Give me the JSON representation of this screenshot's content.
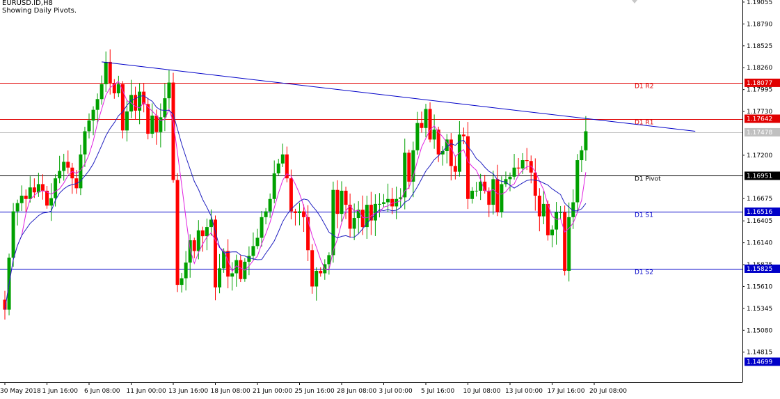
{
  "header": {
    "symbol": "EURUSD.ID,H8",
    "subtitle": "Showing Daily Pivots."
  },
  "chart_data": {
    "type": "candlestick",
    "symbol": "EURUSD.ID",
    "timeframe": "H8",
    "colors": {
      "bull": "#00a000",
      "bear": "#ff0000",
      "ma_fast": "#e020e0",
      "ma_slow": "#2020c0",
      "trendline": "#0000c8",
      "resistance": "#e00000",
      "support": "#0000c8",
      "pivot": "#000000",
      "current_price": "#c0c0c0"
    },
    "y_axis": {
      "min": 1.1445,
      "max": 1.1908,
      "ticks": [
        "1.19055",
        "1.18790",
        "1.18525",
        "1.18260",
        "1.17995",
        "1.17730",
        "1.17200",
        "1.16675",
        "1.16405",
        "1.16140",
        "1.15875",
        "1.15610",
        "1.15345",
        "1.15080",
        "1.14815"
      ],
      "tick_values": [
        1.19055,
        1.1879,
        1.18525,
        1.1826,
        1.17995,
        1.1773,
        1.172,
        1.16675,
        1.16405,
        1.1614,
        1.15875,
        1.1561,
        1.15345,
        1.1508,
        1.14815
      ]
    },
    "x_axis": {
      "labels": [
        "30 May 2018",
        "1 Jun 16:00",
        "6 Jun 08:00",
        "11 Jun 00:00",
        "13 Jun 16:00",
        "18 Jun 08:00",
        "21 Jun 00:00",
        "25 Jun 16:00",
        "28 Jun 08:00",
        "3 Jul 00:00",
        "5 Jul 16:00",
        "10 Jul 08:00",
        "13 Jul 00:00",
        "17 Jul 16:00",
        "20 Jul 08:00"
      ],
      "label_bar_index": [
        0,
        10,
        20,
        30,
        40,
        50,
        60,
        70,
        80,
        90,
        100,
        110,
        120,
        130,
        140
      ]
    },
    "levels": [
      {
        "name": "D1 R2",
        "value": 1.18077,
        "price_label": "1.18077",
        "kind": "resistance"
      },
      {
        "name": "D1 R1",
        "value": 1.17642,
        "price_label": "1.17642",
        "kind": "resistance"
      },
      {
        "name": "D1 Pivot",
        "value": 1.16951,
        "price_label": "1.16951",
        "kind": "pivot"
      },
      {
        "name": "D1 S1",
        "value": 1.16516,
        "price_label": "1.16516",
        "kind": "support"
      },
      {
        "name": "D1 S2",
        "value": 1.15825,
        "price_label": "1.15825",
        "kind": "support"
      }
    ],
    "current_price": {
      "value": 1.17478,
      "label": "1.17478"
    },
    "bottom_price": {
      "value": 1.14699,
      "label": "1.14699"
    },
    "trendline": {
      "start": {
        "bar": 23,
        "price": 1.1833
      },
      "end": {
        "bar": 164,
        "price": 1.1749
      }
    },
    "closes": [
      1.1533,
      1.1596,
      1.1652,
      1.1662,
      1.1671,
      1.1667,
      1.1681,
      1.1675,
      1.1685,
      1.1677,
      1.1659,
      1.1668,
      1.1692,
      1.1701,
      1.1712,
      1.1705,
      1.1692,
      1.168,
      1.1721,
      1.1749,
      1.1762,
      1.1775,
      1.1788,
      1.1806,
      1.1833,
      1.1807,
      1.1795,
      1.1806,
      1.175,
      1.1773,
      1.1793,
      1.1774,
      1.1797,
      1.1782,
      1.1746,
      1.1768,
      1.1748,
      1.1766,
      1.1789,
      1.1808,
      1.169,
      1.1563,
      1.1571,
      1.159,
      1.1617,
      1.1604,
      1.1629,
      1.1622,
      1.1633,
      1.1642,
      1.156,
      1.1583,
      1.1604,
      1.1573,
      1.1577,
      1.1593,
      1.157,
      1.1591,
      1.1598,
      1.161,
      1.162,
      1.1645,
      1.1652,
      1.1667,
      1.1698,
      1.171,
      1.1721,
      1.1692,
      1.1652,
      1.165,
      1.1652,
      1.1645,
      1.1605,
      1.1561,
      1.158,
      1.1577,
      1.1588,
      1.1599,
      1.1678,
      1.1649,
      1.1677,
      1.166,
      1.1631,
      1.1644,
      1.1654,
      1.1633,
      1.166,
      1.1641,
      1.1661,
      1.1661,
      1.1663,
      1.1667,
      1.1658,
      1.1667,
      1.1669,
      1.1723,
      1.1688,
      1.1726,
      1.1759,
      1.1753,
      1.1776,
      1.1739,
      1.1751,
      1.1721,
      1.1725,
      1.1739,
      1.1707,
      1.17,
      1.1745,
      1.1743,
      1.1667,
      1.1677,
      1.1677,
      1.1688,
      1.1677,
      1.166,
      1.1691,
      1.1651,
      1.1685,
      1.1691,
      1.1694,
      1.1705,
      1.1704,
      1.1714,
      1.1713,
      1.1699,
      1.1671,
      1.1646,
      1.1661,
      1.1623,
      1.163,
      1.1651,
      1.1651,
      1.158,
      1.1645,
      1.1663,
      1.1714,
      1.1726,
      1.1749
    ]
  }
}
